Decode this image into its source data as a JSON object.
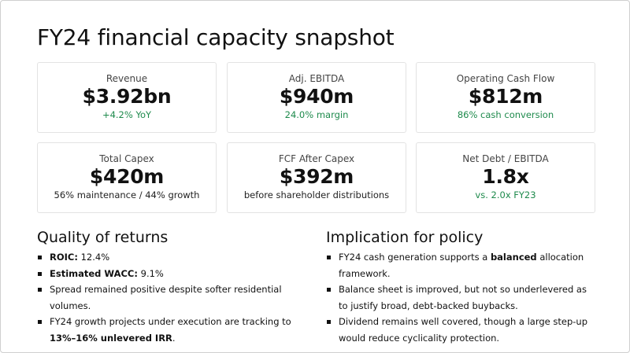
{
  "title": "FY24 financial capacity snapshot",
  "cards": [
    {
      "label": "Revenue",
      "value": "$3.92bn",
      "sub": "+4.2% YoY"
    },
    {
      "label": "Adj. EBITDA",
      "value": "$940m",
      "sub": "24.0% margin"
    },
    {
      "label": "Operating Cash Flow",
      "value": "$812m",
      "sub": "86% cash conversion"
    },
    {
      "label": "Total Capex",
      "value": "$420m",
      "sub": "56% maintenance / 44% growth"
    },
    {
      "label": "FCF After Capex",
      "value": "$392m",
      "sub": "before shareholder distributions"
    },
    {
      "label": "Net Debt / EBITDA",
      "value": "1.8x",
      "sub": "vs. 2.0x FY23"
    }
  ],
  "colors": {
    "positive": "#1e8a4c",
    "text": "#111111",
    "card_border": "#e3e3e3"
  },
  "quality": {
    "heading": "Quality of returns",
    "b1_bold": "ROIC:",
    "b1_rest": " 12.4%",
    "b2_bold": "Estimated WACC:",
    "b2_rest": " 9.1%",
    "b3": "Spread remained positive despite softer residential volumes.",
    "b4_pre": "FY24 growth projects under execution are tracking to ",
    "b4_bold": "13%–16% unlevered IRR",
    "b4_post": "."
  },
  "policy": {
    "heading": "Implication for policy",
    "b1_pre": "FY24 cash generation supports a ",
    "b1_bold": "balanced",
    "b1_post": " allocation framework.",
    "b2": "Balance sheet is improved, but not so underlevered as to justify broad, debt-backed buybacks.",
    "b3": "Dividend remains well covered, though a large step-up would reduce cyclicality protection."
  }
}
